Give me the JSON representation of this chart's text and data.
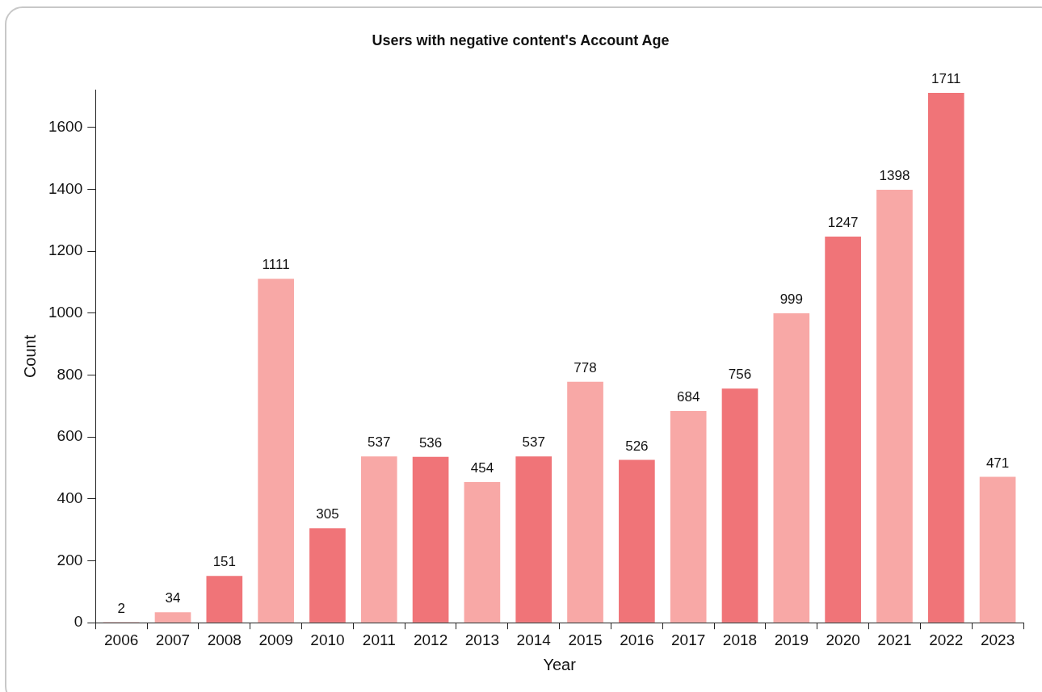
{
  "chart_data": {
    "type": "bar",
    "title": "Users with negative content's Account Age",
    "xlabel": "Year",
    "ylabel": "Count",
    "categories": [
      "2006",
      "2007",
      "2008",
      "2009",
      "2010",
      "2011",
      "2012",
      "2013",
      "2014",
      "2015",
      "2016",
      "2017",
      "2018",
      "2019",
      "2020",
      "2021",
      "2022",
      "2023"
    ],
    "values": [
      2,
      34,
      151,
      1111,
      305,
      537,
      536,
      454,
      537,
      778,
      526,
      684,
      756,
      999,
      1247,
      1398,
      1711,
      471
    ],
    "colors": [
      "#f07478",
      "#f8a8a6",
      "#f07478",
      "#f8a8a6",
      "#f07478",
      "#f8a8a6",
      "#f07478",
      "#f8a8a6",
      "#f07478",
      "#f8a8a6",
      "#f07478",
      "#f8a8a6",
      "#f07478",
      "#f8a8a6",
      "#f07478",
      "#f8a8a6",
      "#f07478",
      "#f8a8a6"
    ],
    "ylim": [
      0,
      1720
    ],
    "yticks": [
      0,
      200,
      400,
      600,
      800,
      1000,
      1200,
      1400,
      1600
    ],
    "grid": false,
    "legend": false,
    "data_labels": true
  }
}
